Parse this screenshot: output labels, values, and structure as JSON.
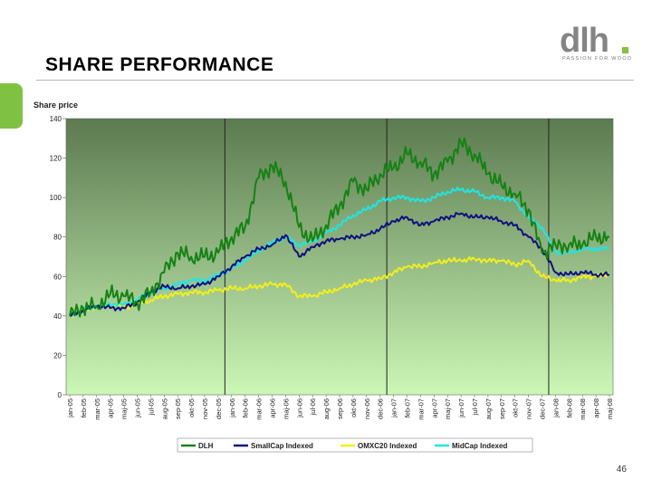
{
  "page": {
    "title": "SHARE PERFORMANCE",
    "page_number": "46"
  },
  "logo": {
    "text": "dlh",
    "tagline": "PASSION FOR WOOD",
    "accent_color": "#7fc241"
  },
  "chart_data": {
    "type": "line",
    "title": "",
    "ylabel": "Share price",
    "xlabel": "",
    "ylim": [
      0,
      140
    ],
    "yticks": [
      0,
      20,
      40,
      60,
      80,
      100,
      120,
      140
    ],
    "categories": [
      "jan-05",
      "feb-05",
      "mar-05",
      "apr-05",
      "maj-05",
      "jun-05",
      "jul-05",
      "aug-05",
      "sep-05",
      "okt-05",
      "nov-05",
      "dec-05",
      "jan-06",
      "feb-06",
      "mar-06",
      "apr-06",
      "maj-06",
      "jun-06",
      "jul-06",
      "aug-06",
      "sep-06",
      "okt-06",
      "nov-06",
      "dec-06",
      "jan-07",
      "feb-07",
      "mar-07",
      "apr-07",
      "maj-07",
      "jun-07",
      "jul-07",
      "aug-07",
      "sep-07",
      "okt-07",
      "nov-07",
      "dec-07",
      "jan-08",
      "feb-08",
      "mar-08",
      "apr-08",
      "maj-08"
    ],
    "vlines_after": [
      "dec-05",
      "dec-06",
      "dec-07"
    ],
    "legend_position": "bottom",
    "background": {
      "top": "#5b7a50",
      "bottom": "#ccf7b6"
    },
    "series": [
      {
        "name": "DLH",
        "color": "#148214",
        "values": [
          40,
          44,
          45,
          51,
          50,
          47,
          52,
          62,
          72,
          70,
          70,
          72,
          80,
          85,
          110,
          116,
          108,
          85,
          78,
          86,
          96,
          108,
          104,
          112,
          115,
          122,
          118,
          112,
          118,
          128,
          122,
          112,
          106,
          102,
          94,
          72,
          76,
          76,
          76,
          80,
          80
        ]
      },
      {
        "name": "SmallCap Indexed",
        "color": "#101080",
        "values": [
          40,
          43,
          45,
          44,
          44,
          47,
          52,
          55,
          54,
          55,
          56,
          60,
          65,
          70,
          74,
          76,
          81,
          70,
          75,
          78,
          79,
          80,
          81,
          84,
          88,
          90,
          86,
          88,
          90,
          92,
          90,
          90,
          88,
          86,
          80,
          74,
          62,
          61,
          62,
          61,
          61
        ]
      },
      {
        "name": "OMXC20 Indexed",
        "color": "#f2ee1e",
        "values": [
          40,
          43,
          45,
          46,
          44,
          46,
          48,
          50,
          51,
          52,
          52,
          53,
          54,
          54,
          55,
          56,
          56,
          50,
          50,
          52,
          54,
          56,
          58,
          59,
          62,
          65,
          65,
          67,
          68,
          68,
          69,
          68,
          68,
          66,
          68,
          60,
          58,
          58,
          60,
          60,
          61
        ]
      },
      {
        "name": "MidCap Indexed",
        "color": "#1ee6e6",
        "values": [
          40,
          43,
          45,
          46,
          46,
          48,
          52,
          54,
          56,
          58,
          58,
          61,
          64,
          68,
          73,
          77,
          80,
          76,
          78,
          82,
          86,
          91,
          94,
          98,
          100,
          100,
          98,
          100,
          103,
          104,
          103,
          100,
          100,
          98,
          90,
          85,
          72,
          72,
          74,
          74,
          74
        ]
      }
    ]
  }
}
